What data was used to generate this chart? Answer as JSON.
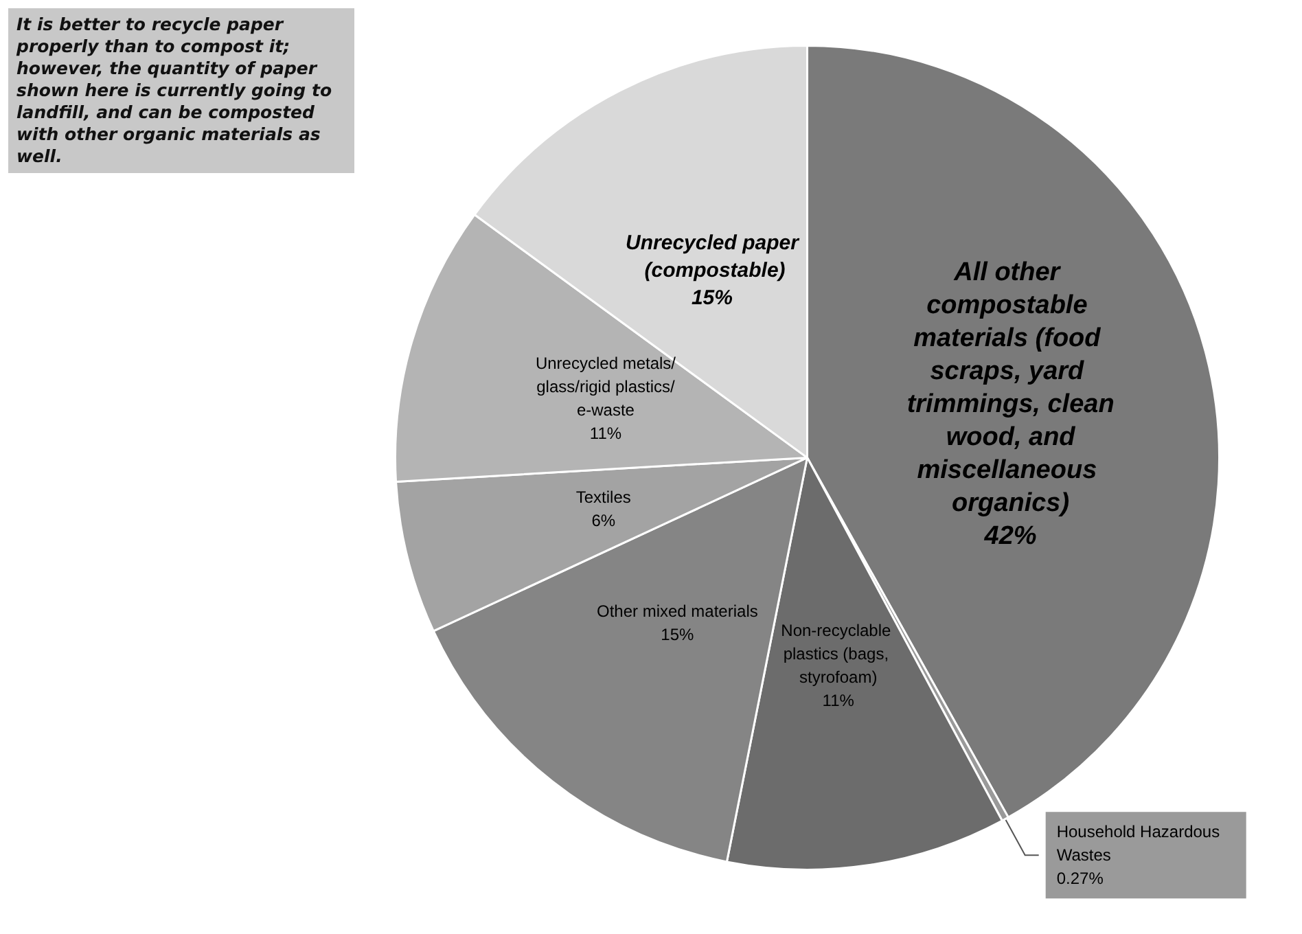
{
  "chart_data": {
    "type": "pie",
    "categories": [
      "All other compostable materials (food scraps, yard trimmings, clean wood, and miscellaneous organics)",
      "Household Hazardous Wastes",
      "Non-recyclable plastics (bags, styrofoam)",
      "Other mixed materials",
      "Textiles",
      "Unrecycled metals/glass/rigid plastics/e-waste",
      "Unrecycled paper (compostable)"
    ],
    "values": [
      42,
      0.27,
      11,
      15,
      6,
      11,
      15
    ],
    "value_labels": [
      "42%",
      "0.27%",
      "11%",
      "15%",
      "6%",
      "11%",
      "15%"
    ],
    "colors": [
      "#7a7a7a",
      "#9a9a9a",
      "#6c6c6c",
      "#858585",
      "#a3a3a3",
      "#b4b4b4",
      "#d9d9d9"
    ],
    "annotations": [
      "It is better to recycle paper properly than to compost it; however, the quantity of paper shown here is currently going to landfill, and can be composted with other organic materials as well."
    ],
    "legend": false
  }
}
